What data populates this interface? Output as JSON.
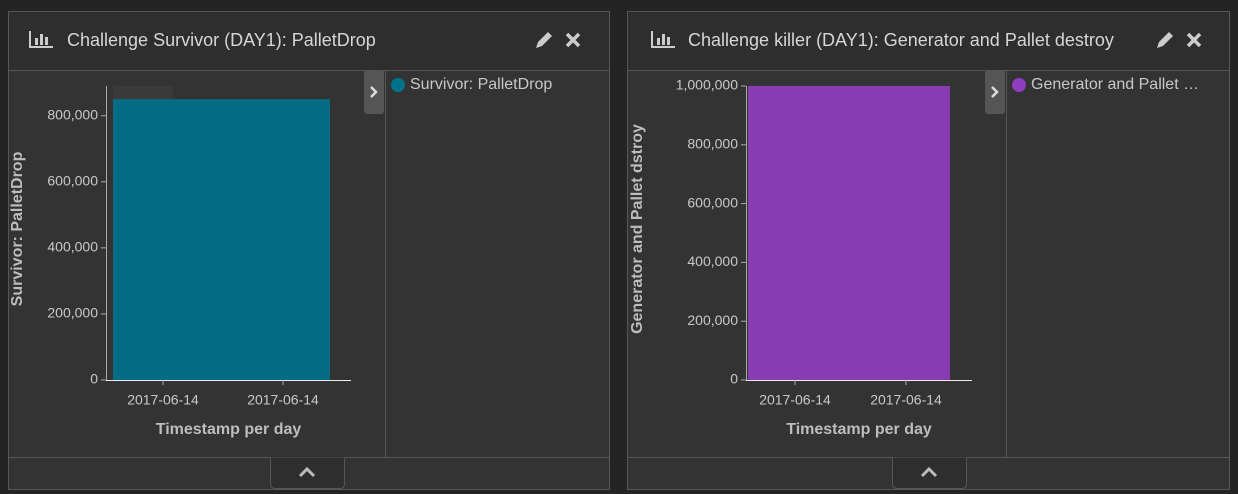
{
  "chart_data": [
    {
      "type": "bar",
      "title": "Challenge Survivor (DAY1): PalletDrop",
      "categories": [
        null
      ],
      "series": [
        {
          "name": "Survivor: PalletDrop",
          "color": "#00728c",
          "values": [
            850000
          ]
        }
      ],
      "ylim": [
        0,
        890000
      ],
      "yticks": [
        0,
        {
          "value": 200000,
          "label": "200,000"
        },
        {
          "value": 400000,
          "label": "400,000"
        },
        {
          "value": 600000,
          "label": "600,000"
        },
        {
          "value": 800000,
          "label": "800,000"
        }
      ],
      "ylabel": "Survivor: PalletDrop",
      "xlabel": "Timestamp per day",
      "xtick_labels": [
        "2017-06-14",
        "2017-06-14"
      ]
    },
    {
      "type": "bar",
      "title": "Challenge killer (DAY1): Generator and Pallet destroy",
      "categories": [
        null
      ],
      "series": [
        {
          "name": "Generator and Pallet …",
          "color": "#8e3dbf",
          "values": [
            1000000
          ]
        }
      ],
      "ylim": [
        0,
        1000000
      ],
      "yticks": [
        0,
        {
          "value": 200000,
          "label": "200,000"
        },
        {
          "value": 400000,
          "label": "400,000"
        },
        {
          "value": 600000,
          "label": "600,000"
        },
        {
          "value": 800000,
          "label": "800,000"
        },
        {
          "value": 1000000,
          "label": "1,000,000"
        }
      ],
      "ylabel": "Generator and Pallet dstroy",
      "xlabel": "Timestamp per day",
      "xtick_labels": [
        "2017-06-14",
        "2017-06-14"
      ]
    }
  ]
}
